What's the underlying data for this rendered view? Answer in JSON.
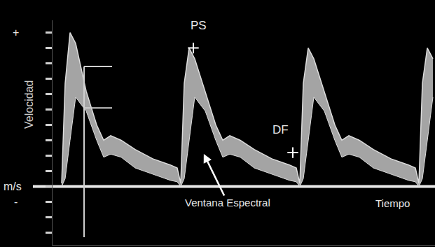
{
  "chart_data": {
    "type": "area",
    "ylabel": "Velocidad",
    "unit_label": "m/s",
    "xlabel": "Tiempo",
    "x": [
      0.13,
      0.18,
      0.25,
      0.33,
      0.48,
      0.63,
      0.73,
      0.83,
      0.98,
      1.18,
      1.43,
      1.68,
      1.78,
      1.83,
      1.88,
      1.95,
      2.03,
      2.18,
      2.33,
      2.43,
      2.53,
      2.68,
      2.88,
      3.13,
      3.38,
      3.48,
      3.53,
      3.58,
      3.65,
      3.73,
      3.88,
      4.03,
      4.13,
      4.23,
      4.38,
      4.58,
      4.83,
      5.08,
      5.18,
      5.23,
      5.28,
      5.35,
      5.43
    ],
    "series": [
      {
        "color": "#dcdcdc",
        "values": [
          0.2,
          6.7,
          10.0,
          9.3,
          6.2,
          4.0,
          3.0,
          3.3,
          3.0,
          2.4,
          1.8,
          1.4,
          1.2,
          0.2,
          6.7,
          9.0,
          8.3,
          6.2,
          4.0,
          3.0,
          3.3,
          3.0,
          2.4,
          1.8,
          1.4,
          1.2,
          0.2,
          6.7,
          9.0,
          8.3,
          6.2,
          4.0,
          3.0,
          3.3,
          3.0,
          2.4,
          1.8,
          1.4,
          1.2,
          0.2,
          6.7,
          9.0,
          8.3
        ]
      },
      {
        "color": "#dcdcdc",
        "values": [
          0,
          0.5,
          3.0,
          5.8,
          4.9,
          3.0,
          1.9,
          2.1,
          1.9,
          1.2,
          0.8,
          0.4,
          0.3,
          0,
          0.5,
          3.0,
          5.8,
          4.9,
          3.0,
          1.9,
          2.1,
          1.9,
          1.2,
          0.8,
          0.4,
          0.3,
          0,
          0.5,
          3.0,
          5.8,
          4.9,
          3.0,
          1.9,
          2.1,
          1.9,
          1.2,
          0.8,
          0.4,
          0.3,
          0,
          0.5,
          3.0,
          5.8
        ]
      }
    ],
    "xlim": [
      0,
      5.46
    ],
    "ylim": [
      -3.8,
      10.8
    ],
    "yticks": [
      -3,
      -2,
      -1,
      0,
      1,
      2,
      3,
      4,
      5,
      6,
      7,
      8,
      9,
      10
    ],
    "tick_labels": false,
    "grid": false,
    "axis_marks": [
      {
        "text": "+",
        "y": 10
      },
      {
        "text": "-",
        "y": -1
      }
    ],
    "annotations": [
      {
        "text": "PS",
        "x": 2.08,
        "y": 10.45
      },
      {
        "text": "DF",
        "x": 3.25,
        "y": 3.7
      },
      {
        "text": "Ventana Espectral",
        "x": 2.5,
        "y": -1.05,
        "arrow_x": 2.15,
        "arrow_y": 2.2
      },
      {
        "text": "Tiempo",
        "x": 4.85,
        "y": -1.1
      }
    ],
    "points": {
      "x": [
        2.01,
        3.43
      ],
      "y": [
        9.0,
        2.2
      ],
      "marker": "cross",
      "color": "#ffffff"
    },
    "caliper": {
      "x": 0.45,
      "end_x": 0.85,
      "y": [
        7.8,
        5.1
      ],
      "bottom": -3.3
    }
  }
}
